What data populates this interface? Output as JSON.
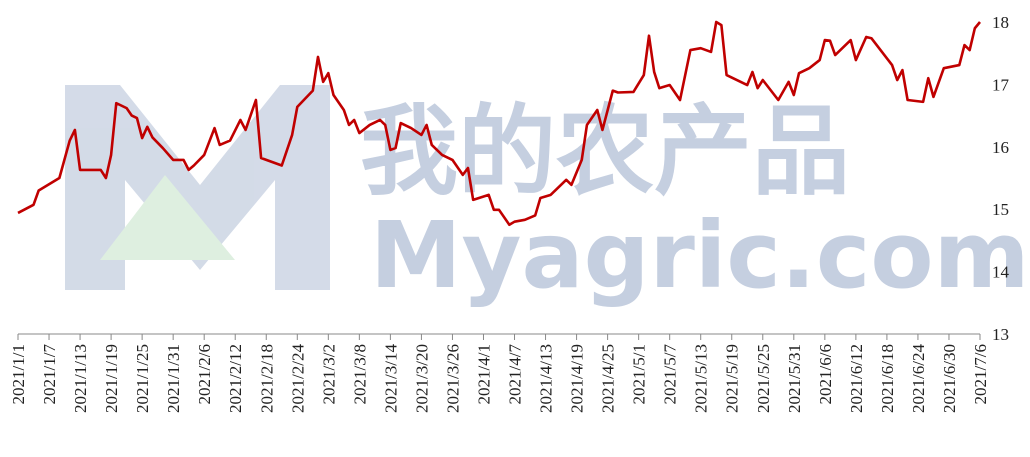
{
  "chart_data": {
    "type": "line",
    "watermark": {
      "name": "我的农产品",
      "site": "Myagric.com"
    },
    "x": [
      "2021/1/1",
      "2021/1/4",
      "2021/1/5",
      "2021/1/9",
      "2021/1/11",
      "2021/1/12",
      "2021/1/13",
      "2021/1/17",
      "2021/1/18",
      "2021/1/19",
      "2021/1/20",
      "2021/1/22",
      "2021/1/23",
      "2021/1/24",
      "2021/1/25",
      "2021/1/26",
      "2021/1/27",
      "2021/1/29",
      "2021/1/31",
      "2021/2/2",
      "2021/2/3",
      "2021/2/4",
      "2021/2/6",
      "2021/2/8",
      "2021/2/9",
      "2021/2/11",
      "2021/2/13",
      "2021/2/14",
      "2021/2/16",
      "2021/2/17",
      "2021/2/21",
      "2021/2/23",
      "2021/2/24",
      "2021/2/27",
      "2021/2/28",
      "2021/3/1",
      "2021/3/2",
      "2021/3/3",
      "2021/3/5",
      "2021/3/6",
      "2021/3/7",
      "2021/3/8",
      "2021/3/10",
      "2021/3/12",
      "2021/3/13",
      "2021/3/14",
      "2021/3/15",
      "2021/3/16",
      "2021/3/18",
      "2021/3/20",
      "2021/3/21",
      "2021/3/22",
      "2021/3/24",
      "2021/3/26",
      "2021/3/28",
      "2021/3/29",
      "2021/3/30",
      "2021/4/2",
      "2021/4/3",
      "2021/4/4",
      "2021/4/6",
      "2021/4/7",
      "2021/4/9",
      "2021/4/11",
      "2021/4/12",
      "2021/4/14",
      "2021/4/17",
      "2021/4/18",
      "2021/4/20",
      "2021/4/21",
      "2021/4/23",
      "2021/4/24",
      "2021/4/26",
      "2021/4/27",
      "2021/4/30",
      "2021/5/2",
      "2021/5/3",
      "2021/5/4",
      "2021/5/5",
      "2021/5/7",
      "2021/5/9",
      "2021/5/11",
      "2021/5/13",
      "2021/5/15",
      "2021/5/16",
      "2021/5/17",
      "2021/5/18",
      "2021/5/22",
      "2021/5/23",
      "2021/5/24",
      "2021/5/25",
      "2021/5/28",
      "2021/5/30",
      "2021/5/31",
      "2021/6/1",
      "2021/6/3",
      "2021/6/5",
      "2021/6/6",
      "2021/6/7",
      "2021/6/8",
      "2021/6/11",
      "2021/6/12",
      "2021/6/14",
      "2021/6/15",
      "2021/6/19",
      "2021/6/20",
      "2021/6/21",
      "2021/6/22",
      "2021/6/25",
      "2021/6/26",
      "2021/6/27",
      "2021/6/29",
      "2021/7/2",
      "2021/7/3",
      "2021/7/4",
      "2021/7/5",
      "2021/7/6"
    ],
    "series": [
      {
        "color": "#c00000",
        "values": [
          14.94,
          15.07,
          15.3,
          15.5,
          16.1,
          16.27,
          15.63,
          15.63,
          15.5,
          15.87,
          16.7,
          16.62,
          16.5,
          16.46,
          16.14,
          16.32,
          16.15,
          15.98,
          15.79,
          15.79,
          15.63,
          15.7,
          15.87,
          16.3,
          16.03,
          16.1,
          16.43,
          16.27,
          16.75,
          15.82,
          15.7,
          16.19,
          16.64,
          16.9,
          17.44,
          17.04,
          17.18,
          16.83,
          16.59,
          16.35,
          16.43,
          16.22,
          16.35,
          16.43,
          16.35,
          15.95,
          15.98,
          16.38,
          16.3,
          16.19,
          16.35,
          16.03,
          15.87,
          15.79,
          15.55,
          15.66,
          15.15,
          15.23,
          14.99,
          14.99,
          14.75,
          14.8,
          14.83,
          14.9,
          15.18,
          15.23,
          15.47,
          15.39,
          15.79,
          16.35,
          16.59,
          16.27,
          16.9,
          16.87,
          16.88,
          17.15,
          17.78,
          17.2,
          16.94,
          16.99,
          16.75,
          17.55,
          17.58,
          17.52,
          18.0,
          17.95,
          17.15,
          16.99,
          17.2,
          16.94,
          17.07,
          16.75,
          17.04,
          16.83,
          17.18,
          17.26,
          17.39,
          17.71,
          17.7,
          17.47,
          17.71,
          17.39,
          17.76,
          17.74,
          17.31,
          17.07,
          17.23,
          16.75,
          16.72,
          17.1,
          16.8,
          17.26,
          17.31,
          17.63,
          17.55,
          17.9,
          18.0
        ]
      }
    ],
    "xlim": [
      "2021/1/1",
      "2021/7/6"
    ],
    "xticks": [
      "2021/1/1",
      "2021/1/7",
      "2021/1/13",
      "2021/1/19",
      "2021/1/25",
      "2021/1/31",
      "2021/2/6",
      "2021/2/12",
      "2021/2/18",
      "2021/2/24",
      "2021/3/2",
      "2021/3/8",
      "2021/3/14",
      "2021/3/20",
      "2021/3/26",
      "2021/4/1",
      "2021/4/7",
      "2021/4/13",
      "2021/4/19",
      "2021/4/25",
      "2021/5/1",
      "2021/5/7",
      "2021/5/13",
      "2021/5/19",
      "2021/5/25",
      "2021/5/31",
      "2021/6/6",
      "2021/6/12",
      "2021/6/18",
      "2021/6/24",
      "2021/6/30",
      "2021/7/6"
    ],
    "ylim": [
      13,
      18
    ],
    "yticks": [
      13,
      14,
      15,
      16,
      17,
      18
    ],
    "y_axis_side": "right",
    "grid": false
  }
}
